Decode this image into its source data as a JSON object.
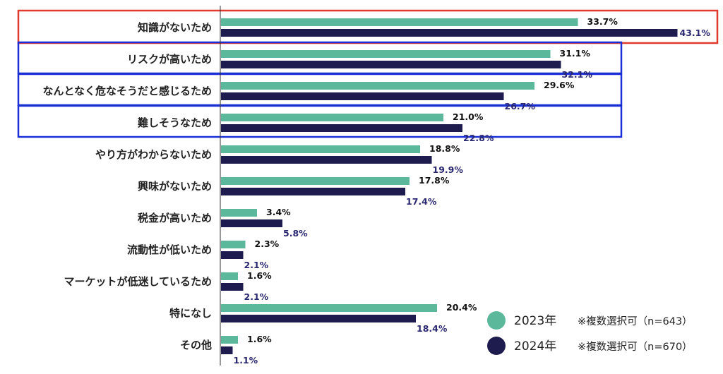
{
  "chart_data": {
    "type": "bar",
    "orientation": "horizontal",
    "categories": [
      "知識がないため",
      "リスクが高いため",
      "なんとなく危なそうだと感じるため",
      "難しそうなため",
      "やり方がわからないため",
      "興味がないため",
      "税金が高いため",
      "流動性が低いため",
      "マーケットが低迷しているため",
      "特になし",
      "その他"
    ],
    "series": [
      {
        "name": "2023年",
        "note": "※複数選択可（n=643）",
        "color": "#5bb89a",
        "values": [
          33.7,
          31.1,
          29.6,
          21.0,
          18.8,
          17.8,
          3.4,
          2.3,
          1.6,
          20.4,
          1.6
        ],
        "labels": [
          "33.7%",
          "31.1%",
          "29.6%",
          "21.0%",
          "18.8%",
          "17.8%",
          "3.4%",
          "2.3%",
          "1.6%",
          "20.4%",
          "1.6%"
        ]
      },
      {
        "name": "2024年",
        "note": "※複数選択可（n=670）",
        "color": "#1e1b4f",
        "values": [
          43.1,
          32.1,
          26.7,
          22.8,
          19.9,
          17.4,
          5.8,
          2.1,
          2.1,
          18.4,
          1.1
        ],
        "labels": [
          "43.1%",
          "32.1%",
          "26.7%",
          "22.8%",
          "19.9%",
          "17.4%",
          "5.8%",
          "2.1%",
          "2.1%",
          "18.4%",
          "1.1%"
        ]
      }
    ],
    "highlight": {
      "red": [
        0
      ],
      "blue": [
        1,
        2,
        3
      ]
    },
    "legend_position": "bottom-right",
    "label_colors": {
      "2023年": "#111111",
      "2024年": "#2a2870"
    }
  }
}
